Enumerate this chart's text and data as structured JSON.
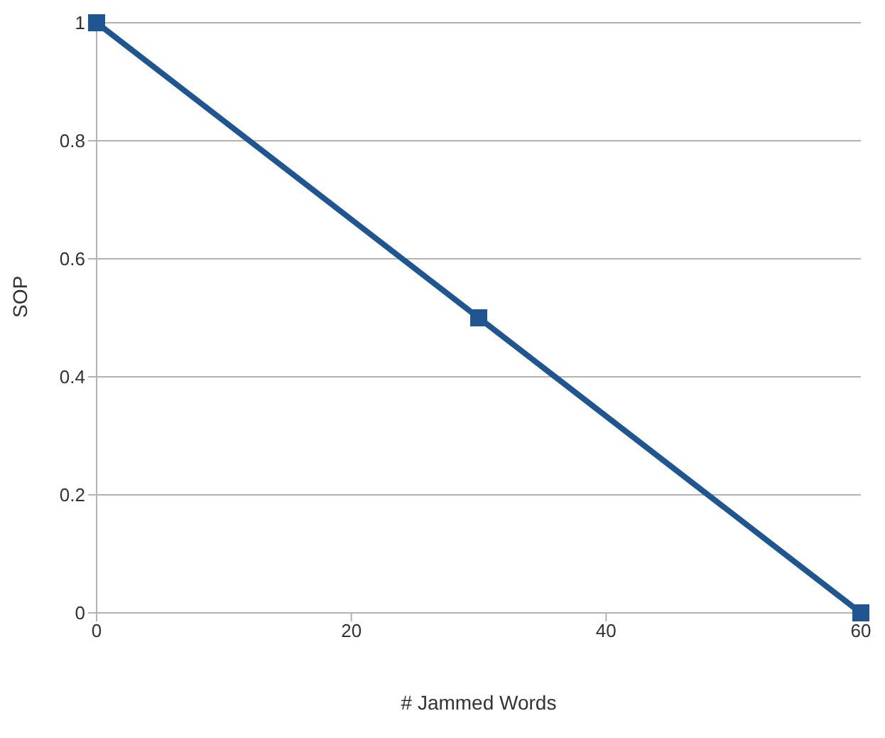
{
  "chart_data": {
    "type": "line",
    "xlabel": "# Jammed Words",
    "ylabel": "SOP",
    "x": [
      0,
      30,
      60
    ],
    "series": [
      {
        "color": "#1f5591",
        "values": [
          1,
          0.5,
          0
        ]
      }
    ],
    "xlim": [
      0,
      60
    ],
    "xticks": [
      0,
      20,
      40,
      60
    ],
    "ylim": [
      0,
      1
    ],
    "yticks": [
      0,
      0.2,
      0.4,
      0.6,
      0.8,
      1
    ],
    "grid": "y",
    "marker": "square",
    "line_style": "solid"
  }
}
